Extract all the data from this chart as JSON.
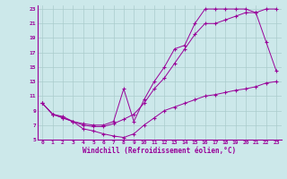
{
  "bg_color": "#cce8ea",
  "line_color": "#990099",
  "grid_color": "#aacccc",
  "xlabel": "Windchill (Refroidissement éolien,°C)",
  "xlim": [
    -0.5,
    23.5
  ],
  "ylim": [
    5,
    23.5
  ],
  "yticks": [
    5,
    7,
    9,
    11,
    13,
    15,
    17,
    19,
    21,
    23
  ],
  "xticks": [
    0,
    1,
    2,
    3,
    4,
    5,
    6,
    7,
    8,
    9,
    10,
    11,
    12,
    13,
    14,
    15,
    16,
    17,
    18,
    19,
    20,
    21,
    22,
    23
  ],
  "line1_x": [
    0,
    1,
    2,
    3,
    4,
    5,
    6,
    7,
    8,
    9,
    10,
    11,
    12,
    13,
    14,
    15,
    16,
    17,
    18,
    19,
    20,
    21,
    22,
    23
  ],
  "line1_y": [
    10,
    8.5,
    8,
    7.5,
    6.5,
    6.2,
    5.8,
    5.5,
    5.3,
    5.8,
    7.0,
    8.0,
    9.0,
    9.5,
    10.0,
    10.5,
    11.0,
    11.2,
    11.5,
    11.8,
    12.0,
    12.3,
    12.8,
    13.0
  ],
  "line2_x": [
    0,
    1,
    2,
    3,
    4,
    5,
    6,
    7,
    8,
    9,
    10,
    11,
    12,
    13,
    14,
    15,
    16,
    17,
    18,
    19,
    20,
    21,
    22,
    23
  ],
  "line2_y": [
    10,
    8.5,
    8.2,
    7.5,
    7.2,
    7.0,
    7.0,
    7.5,
    12.0,
    7.5,
    10.5,
    13.0,
    15.0,
    17.5,
    18.0,
    21.0,
    23.0,
    23.0,
    23.0,
    23.0,
    23.0,
    22.5,
    23.0,
    23.0
  ],
  "line3_x": [
    0,
    1,
    2,
    3,
    4,
    5,
    6,
    7,
    8,
    9,
    10,
    11,
    12,
    13,
    14,
    15,
    16,
    17,
    18,
    19,
    20,
    21,
    22,
    23
  ],
  "line3_y": [
    10,
    8.5,
    8.0,
    7.5,
    7.0,
    6.8,
    6.8,
    7.2,
    7.8,
    8.5,
    10.0,
    12.0,
    13.5,
    15.5,
    17.5,
    19.5,
    21.0,
    21.0,
    21.5,
    22.0,
    22.5,
    22.5,
    18.5,
    14.5
  ]
}
